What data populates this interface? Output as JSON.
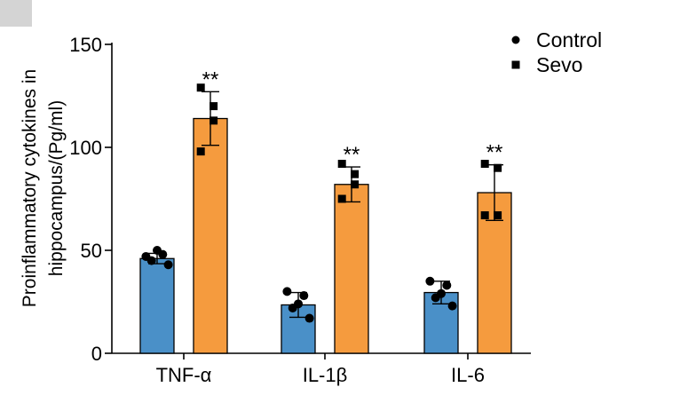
{
  "chart_data": {
    "type": "bar",
    "ylabel_line1": "Proinflammatory cytokines in",
    "ylabel_line2": "hippocampus/(Pg/ml)",
    "ylim": [
      0,
      150
    ],
    "yticks": [
      0,
      50,
      100,
      150
    ],
    "categories": [
      "TNF-α",
      "IL-1β",
      "IL-6"
    ],
    "series": [
      {
        "name": "Control",
        "color": "#4a90c8",
        "marker": "circle",
        "values": [
          46,
          23.5,
          29.5
        ],
        "errors": [
          2.5,
          6,
          5.5
        ],
        "points": [
          [
            47,
            48,
            50,
            45,
            43
          ],
          [
            30,
            28,
            24,
            22,
            17
          ],
          [
            35,
            33,
            29,
            27,
            23
          ]
        ]
      },
      {
        "name": "Sevo",
        "color": "#f59b3e",
        "marker": "square",
        "values": [
          114,
          82,
          78
        ],
        "errors": [
          13,
          8.5,
          13.5
        ],
        "points": [
          [
            129,
            120,
            113,
            98
          ],
          [
            92,
            87,
            82,
            75
          ],
          [
            92,
            90,
            67,
            67
          ]
        ]
      }
    ],
    "annotations": [
      "**",
      "**",
      "**"
    ],
    "legend_position": "top-right"
  }
}
